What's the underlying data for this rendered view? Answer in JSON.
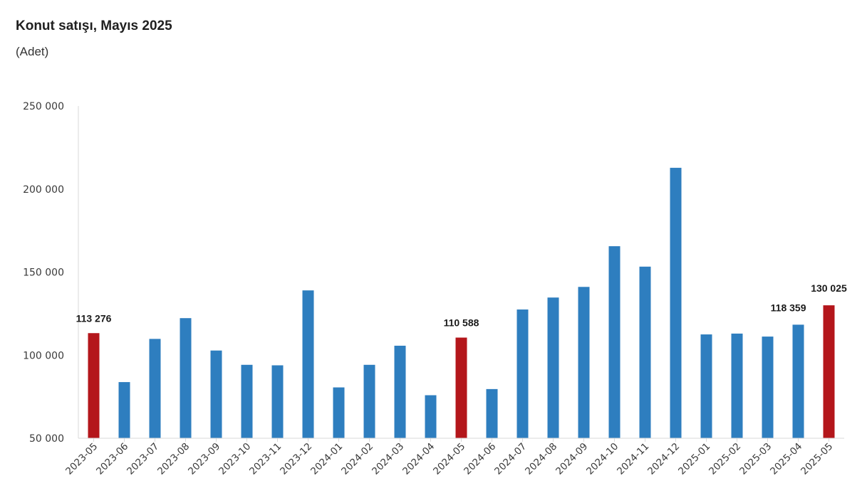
{
  "header": {
    "title": "Konut satışı, Mayıs 2025",
    "subtitle": "(Adet)"
  },
  "chart_data": {
    "type": "bar",
    "title": "Konut satışı, Mayıs 2025",
    "subtitle": "(Adet)",
    "xlabel": "",
    "ylabel": "",
    "ylim": [
      50000,
      250000
    ],
    "yticks": [
      50000,
      100000,
      150000,
      200000,
      250000
    ],
    "ytick_labels": [
      "50 000",
      "100 000",
      "150 000",
      "200 000",
      "250 000"
    ],
    "grid": false,
    "legend": "none",
    "categories": [
      "2023-05",
      "2023-06",
      "2023-07",
      "2023-08",
      "2023-09",
      "2023-10",
      "2023-11",
      "2023-12",
      "2024-01",
      "2024-02",
      "2024-03",
      "2024-04",
      "2024-05",
      "2024-06",
      "2024-07",
      "2024-08",
      "2024-09",
      "2024-10",
      "2024-11",
      "2024-12",
      "2025-01",
      "2025-02",
      "2025-03",
      "2025-04",
      "2025-05"
    ],
    "values": [
      113276,
      83800,
      109800,
      122300,
      102800,
      94200,
      93900,
      139000,
      80600,
      94200,
      105700,
      75900,
      110588,
      79600,
      127500,
      134700,
      141100,
      165600,
      153300,
      212800,
      112500,
      113000,
      111200,
      118359,
      130025
    ],
    "highlighted": [
      "2023-05",
      "2024-05",
      "2025-05"
    ],
    "data_labels": [
      {
        "category": "2023-05",
        "text": "113 276"
      },
      {
        "category": "2024-05",
        "text": "110 588"
      },
      {
        "category": "2025-04",
        "text": "118 359"
      },
      {
        "category": "2025-05",
        "text": "130 025"
      }
    ],
    "colors": {
      "default": "#2e7ebf",
      "highlight": "#b4161b",
      "axis": "#d9d9d9"
    }
  }
}
